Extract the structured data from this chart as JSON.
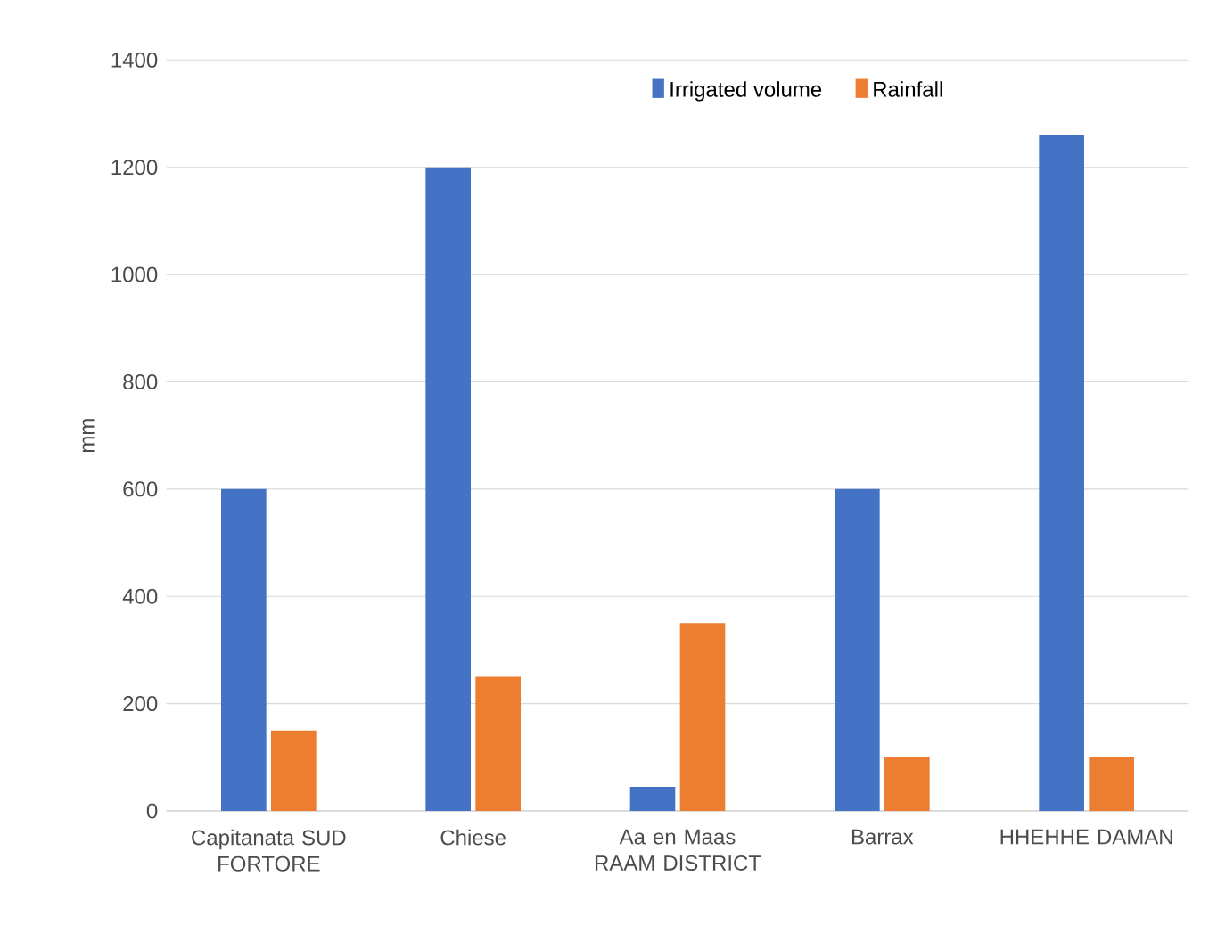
{
  "chart_data": {
    "type": "bar",
    "ylabel": "mm",
    "categories": [
      "Capitanata SUD FORTORE",
      "Chiese",
      "Aa en Maas RAAM DISTRICT",
      "Barrax",
      "HHEHHE DAMAN"
    ],
    "series": [
      {
        "name": "Irrigated volume",
        "color": "#4472c4",
        "values": [
          600,
          1200,
          45,
          600,
          1260
        ]
      },
      {
        "name": "Rainfall",
        "color": "#ed7d31",
        "values": [
          150,
          250,
          350,
          100,
          100
        ]
      }
    ],
    "ylim": [
      0,
      1400
    ],
    "yticks": [
      0,
      200,
      400,
      600,
      800,
      1000,
      1200,
      1400
    ],
    "grid": "y",
    "legend": "top"
  }
}
